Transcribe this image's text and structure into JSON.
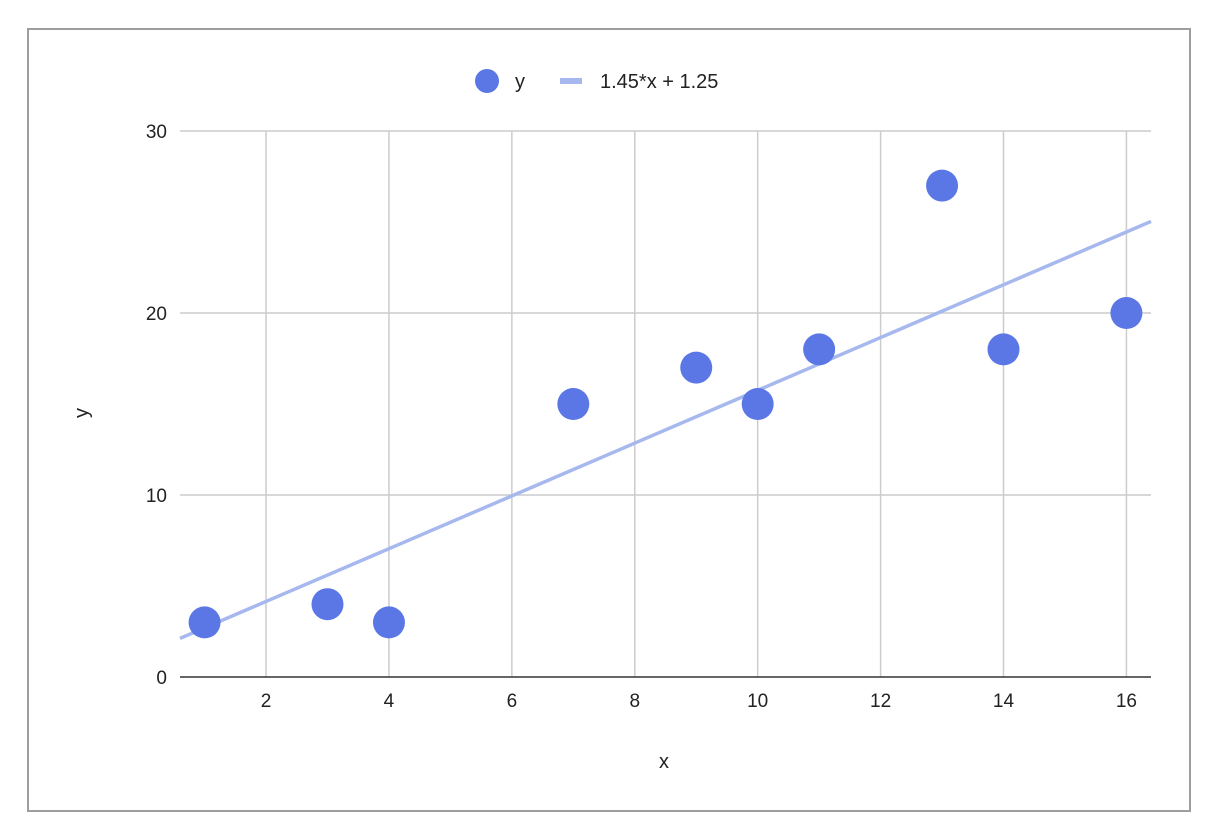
{
  "chart_data": {
    "type": "scatter",
    "title": "",
    "xlabel": "x",
    "ylabel": "y",
    "xlim": [
      0.6,
      16.4
    ],
    "ylim": [
      0,
      30
    ],
    "xticks": [
      2,
      4,
      6,
      8,
      10,
      12,
      14,
      16
    ],
    "yticks": [
      0,
      10,
      20,
      30
    ],
    "grid": true,
    "legend_position": "top",
    "series": [
      {
        "name": "y",
        "kind": "scatter",
        "color": "#5b77e6",
        "x": [
          1,
          3,
          4,
          7,
          9,
          10,
          11,
          13,
          14,
          16
        ],
        "y": [
          3,
          4,
          3,
          15,
          17,
          15,
          18,
          27,
          18,
          20
        ]
      },
      {
        "name": "1.45*x + 1.25",
        "kind": "trendline",
        "color": "#a6b8ee",
        "slope": 1.45,
        "intercept": 1.25
      }
    ]
  }
}
